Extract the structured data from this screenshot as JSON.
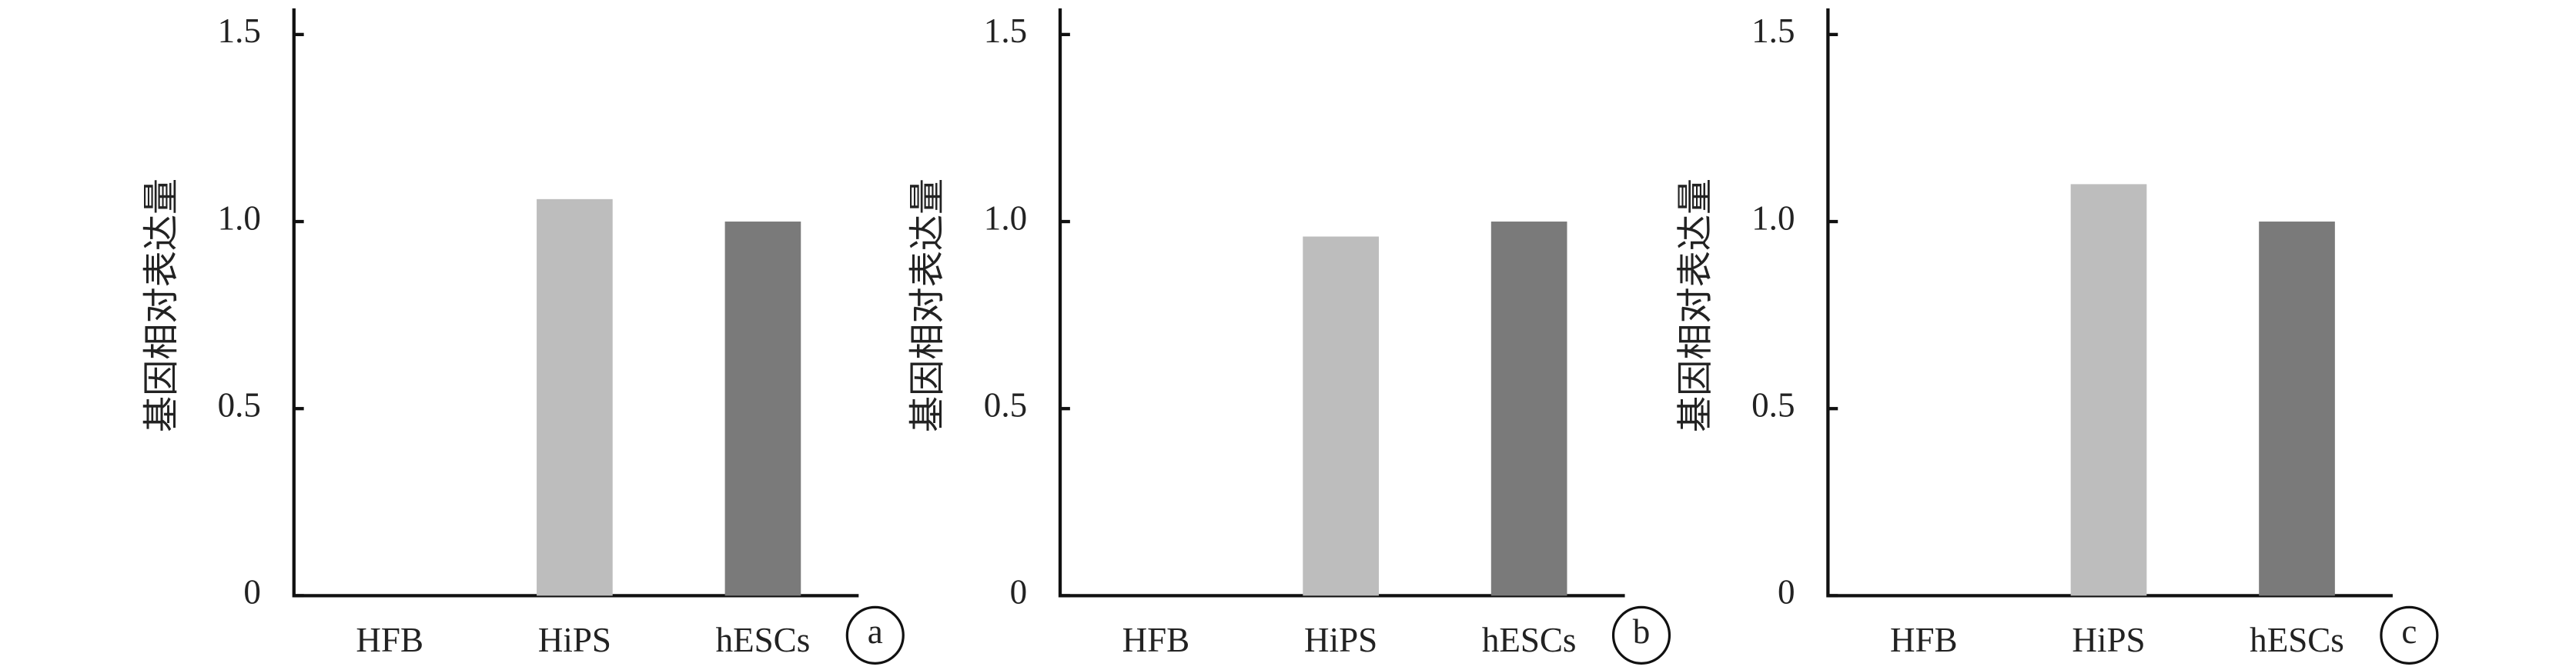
{
  "chart_data": [
    {
      "type": "bar",
      "y_label": "基因相对表达量",
      "panel_label": "a",
      "categories": [
        "HFB",
        "HiPS",
        "hESCs"
      ],
      "values": [
        0,
        1.06,
        1.0
      ],
      "colors": [
        "#7a7a7a",
        "#bdbdbd",
        "#7a7a7a"
      ],
      "ylim": [
        0,
        1.57
      ],
      "yticks": [
        {
          "value": 0,
          "label": "0"
        },
        0.5,
        {
          "value": 1,
          "label": "1.0"
        },
        1.5
      ]
    },
    {
      "type": "bar",
      "y_label": "基因相对表达量",
      "panel_label": "b",
      "categories": [
        "HFB",
        "HiPS",
        "hESCs"
      ],
      "values": [
        0,
        0.96,
        1.0
      ],
      "colors": [
        "#7a7a7a",
        "#bdbdbd",
        "#7a7a7a"
      ],
      "ylim": [
        0,
        1.57
      ],
      "yticks": [
        {
          "value": 0,
          "label": "0"
        },
        0.5,
        {
          "value": 1,
          "label": "1.0"
        },
        1.5
      ]
    },
    {
      "type": "bar",
      "y_label": "基因相对表达量",
      "panel_label": "c",
      "categories": [
        "HFB",
        "HiPS",
        "hESCs"
      ],
      "values": [
        0,
        1.1,
        1.0
      ],
      "colors": [
        "#7a7a7a",
        "#bdbdbd",
        "#7a7a7a"
      ],
      "ylim": [
        0,
        1.57
      ],
      "yticks": [
        {
          "value": 0,
          "label": "0"
        },
        0.5,
        {
          "value": 1,
          "label": "1.0"
        },
        1.5
      ]
    }
  ]
}
